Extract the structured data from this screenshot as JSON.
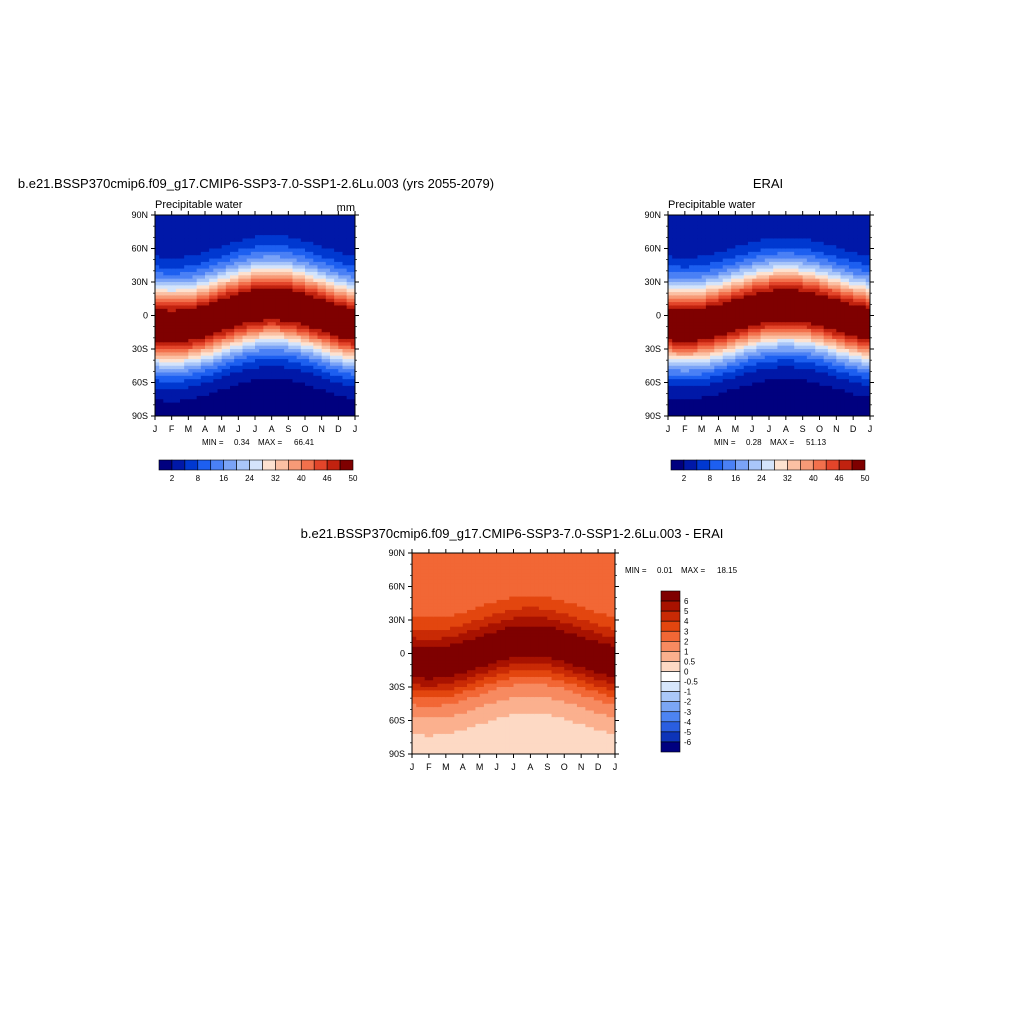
{
  "chart_data": [
    {
      "type": "heatmap",
      "title": "b.e21.BSSP370cmip6.f09_g17.CMIP6-SSP3-7.0-SSP1-2.6Lu.003 (yrs 2055-2079)",
      "subtitle_left": "Precipitable water",
      "subtitle_right": "mm",
      "x_ticks": [
        "J",
        "F",
        "M",
        "A",
        "M",
        "J",
        "J",
        "A",
        "S",
        "O",
        "N",
        "D",
        "J"
      ],
      "y_ticks": [
        "90S",
        "60S",
        "30S",
        "0",
        "30N",
        "60N",
        "90N"
      ],
      "ylim": [
        -90,
        90
      ],
      "min_label": "MIN =",
      "min_value": "0.34",
      "max_label": "MAX =",
      "max_value": "66.41",
      "colorbar": {
        "orientation": "horizontal",
        "labels": [
          "2",
          "8",
          "16",
          "24",
          "32",
          "40",
          "46",
          "50"
        ],
        "colors": [
          "#00007f",
          "#0018a8",
          "#0038d0",
          "#1d5ff0",
          "#4a80f5",
          "#7aa3f7",
          "#a9c6f9",
          "#d4e4fb",
          "#fde2d0",
          "#fbc0a3",
          "#f79a77",
          "#f2704c",
          "#e3452a",
          "#c1220f",
          "#7f0000"
        ]
      },
      "field": {
        "eq_max": 58,
        "pole_n": 4,
        "pole_s": 1.5,
        "width": 26,
        "itcz_amp": 10
      }
    },
    {
      "type": "heatmap",
      "title": "ERAI",
      "subtitle_left": "Precipitable water",
      "x_ticks": [
        "J",
        "F",
        "M",
        "A",
        "M",
        "J",
        "J",
        "A",
        "S",
        "O",
        "N",
        "D",
        "J"
      ],
      "y_ticks": [
        "90S",
        "60S",
        "30S",
        "0",
        "30N",
        "60N",
        "90N"
      ],
      "ylim": [
        -90,
        90
      ],
      "min_label": "MIN =",
      "min_value": "0.28",
      "max_label": "MAX =",
      "max_value": "51.13",
      "colorbar": {
        "orientation": "horizontal",
        "labels": [
          "2",
          "8",
          "16",
          "24",
          "32",
          "40",
          "46",
          "50"
        ],
        "colors": [
          "#00007f",
          "#0018a8",
          "#0038d0",
          "#1d5ff0",
          "#4a80f5",
          "#7aa3f7",
          "#a9c6f9",
          "#d4e4fb",
          "#fde2d0",
          "#fbc0a3",
          "#f79a77",
          "#f2704c",
          "#e3452a",
          "#c1220f",
          "#7f0000"
        ]
      },
      "field": {
        "eq_max": 47,
        "pole_n": 3,
        "pole_s": 1,
        "width": 26,
        "itcz_amp": 9
      }
    },
    {
      "type": "heatmap",
      "title": "b.e21.BSSP370cmip6.f09_g17.CMIP6-SSP3-7.0-SSP1-2.6Lu.003 - ERAI",
      "x_ticks": [
        "J",
        "F",
        "M",
        "A",
        "M",
        "J",
        "J",
        "A",
        "S",
        "O",
        "N",
        "D",
        "J"
      ],
      "y_ticks": [
        "90S",
        "60S",
        "30S",
        "0",
        "30N",
        "60N",
        "90N"
      ],
      "ylim": [
        -90,
        90
      ],
      "min_label": "MIN =",
      "min_value": "0.01",
      "max_label": "MAX =",
      "max_value": "18.15",
      "colorbar": {
        "orientation": "vertical",
        "labels": [
          "6",
          "5",
          "4",
          "3",
          "2",
          "1",
          "0.5",
          "0",
          "-0.5",
          "-1",
          "-2",
          "-3",
          "-4",
          "-5",
          "-6"
        ],
        "colors": [
          "#7f0000",
          "#a81200",
          "#c92a05",
          "#e3460f",
          "#f26735",
          "#f78a60",
          "#fbb08e",
          "#fdd9c4",
          "#ffffff",
          "#d6e6fb",
          "#aac8f8",
          "#7ba6f5",
          "#4d84f2",
          "#2a5ee0",
          "#0d34b8",
          "#00007f"
        ]
      },
      "field": {
        "eq_max": 7,
        "pole_n": 2.2,
        "pole_s": 0.4,
        "width": 22,
        "itcz_amp": 10
      }
    }
  ]
}
